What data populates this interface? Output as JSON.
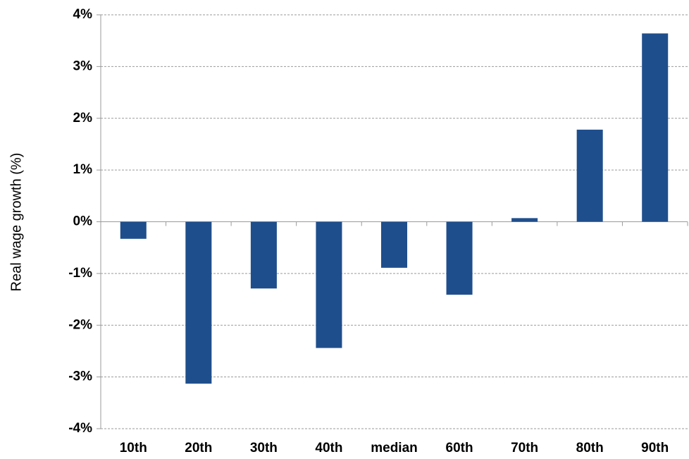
{
  "chart_data": {
    "type": "bar",
    "y_label": "Real wage growth  (%)",
    "categories": [
      "10th",
      "20th",
      "30th",
      "40th",
      "median",
      "60th",
      "70th",
      "80th",
      "90th"
    ],
    "values": [
      -0.33,
      -3.13,
      -1.29,
      -2.44,
      -0.89,
      -1.41,
      0.07,
      1.78,
      3.64
    ],
    "color": "#1f4e8c",
    "ylim": [
      -4,
      4
    ],
    "yticks": [
      {
        "value": -4,
        "label": "-4%"
      },
      {
        "value": -3,
        "label": "-3%"
      },
      {
        "value": -2,
        "label": "-2%"
      },
      {
        "value": -1,
        "label": "-1%"
      },
      {
        "value": 0,
        "label": "0%"
      },
      {
        "value": 1,
        "label": "1%"
      },
      {
        "value": 2,
        "label": "2%"
      },
      {
        "value": 3,
        "label": "3%"
      },
      {
        "value": 4,
        "label": "4%"
      }
    ],
    "grid": true
  }
}
